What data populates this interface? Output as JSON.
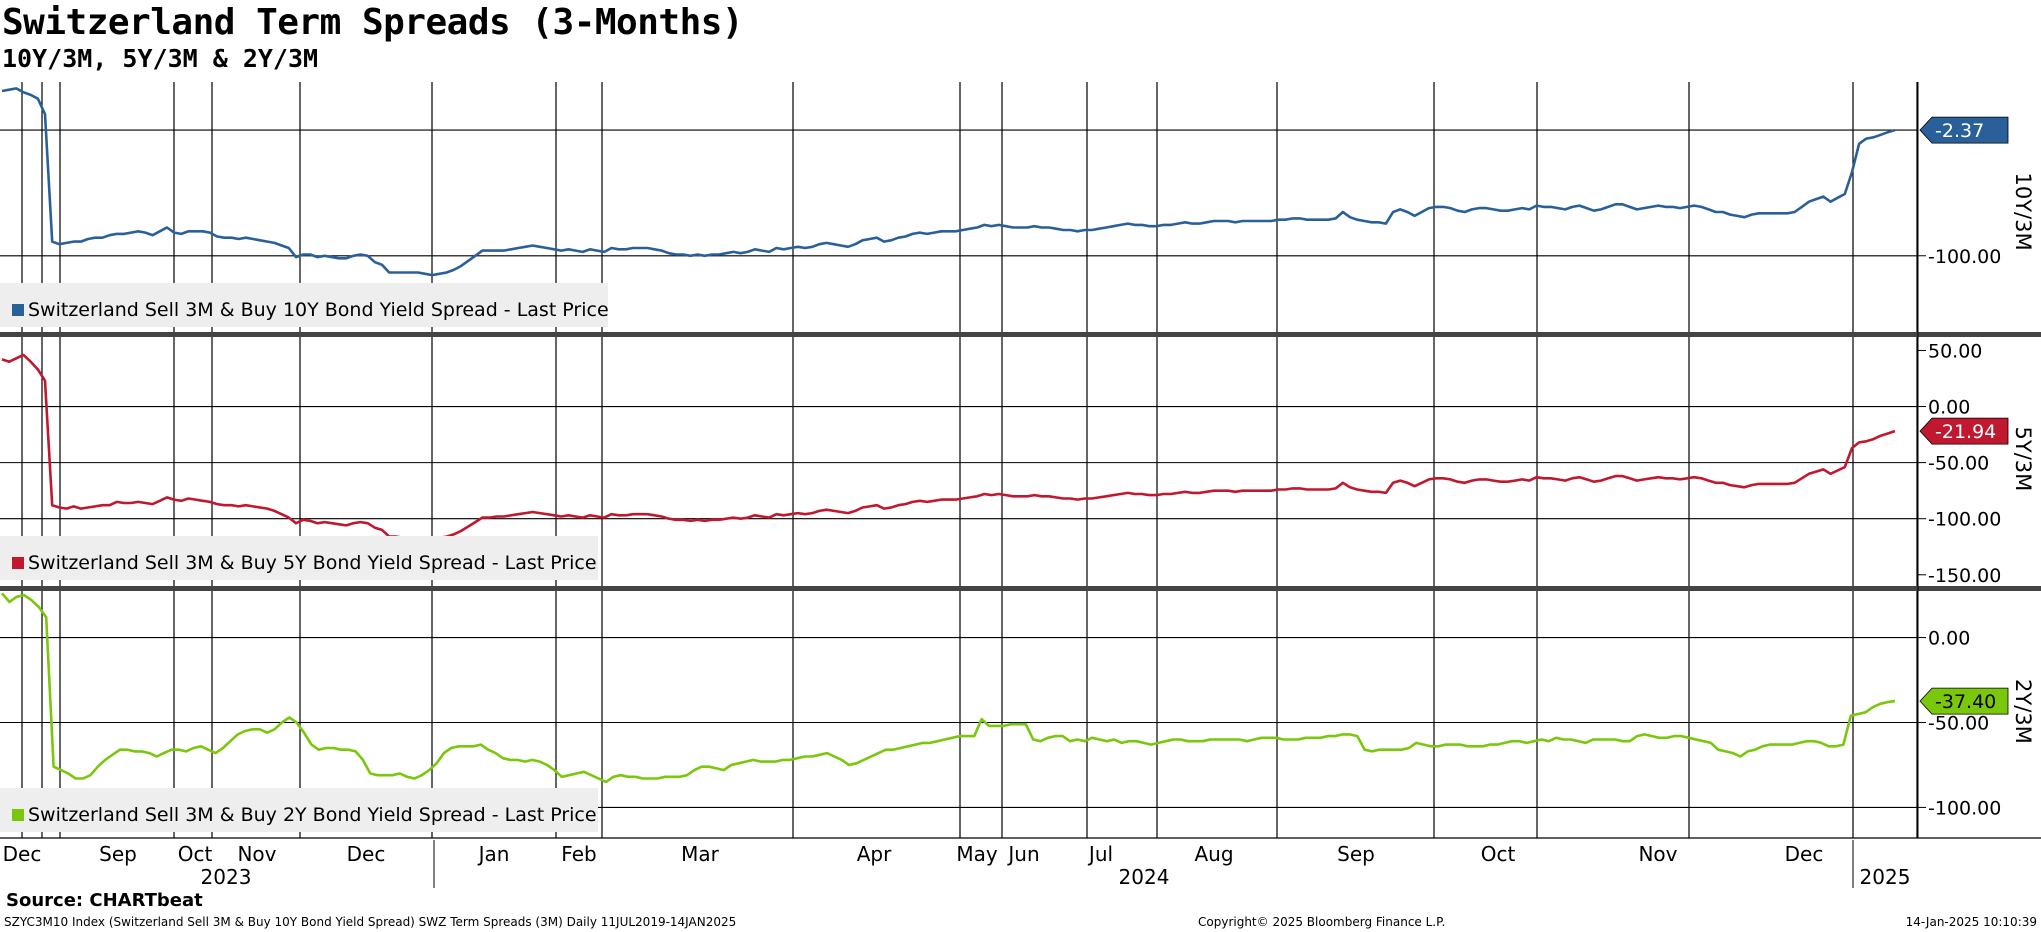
{
  "header": {
    "title": "Switzerland Term Spreads (3-Months)",
    "subtitle": "10Y/3M, 5Y/3M & 2Y/3M"
  },
  "footer": {
    "source": "Source: CHARTbeat",
    "description": "SZYC3M10 Index (Switzerland Sell 3M & Buy 10Y Bond Yield Spread) SWZ Term Spreads (3M)  Daily 11JUL2019-14JAN2025",
    "copyright": "Copyright© 2025 Bloomberg Finance L.P.",
    "timestamp": "14-Jan-2025 10:10:39"
  },
  "colors": {
    "series_10y": "#2a6099",
    "series_5y": "#c0182f",
    "series_2y": "#7ac70c",
    "grid": "#000000"
  },
  "chart_data": {
    "type": "line",
    "x_axis": {
      "start_week": 0,
      "end_week": 60,
      "months": [
        {
          "label": "Dec",
          "week": 0
        },
        {
          "label": "Sep",
          "week": 6.5
        },
        {
          "label": "Oct",
          "week": 11
        },
        {
          "label": "Nov",
          "week": 15
        },
        {
          "label": "Dec",
          "week": 22
        },
        {
          "label": "Jan",
          "week": 29
        },
        {
          "label": "Feb",
          "week": 33
        },
        {
          "label": "Mar",
          "week": 39
        },
        {
          "label": "Apr",
          "week": 46
        },
        {
          "label": "May",
          "week": 51
        },
        {
          "label": "Jun",
          "week": 53
        },
        {
          "label": "Jul",
          "week": 57
        },
        {
          "label": "Aug",
          "week": 62
        },
        {
          "label": "Sep",
          "week": 69
        },
        {
          "label": "Oct",
          "week": 77
        },
        {
          "label": "Nov",
          "week": 86
        },
        {
          "label": "Dec",
          "week": 94
        },
        {
          "label": "2023",
          "week": 13.5,
          "level": "year"
        },
        {
          "label": "2024",
          "week": 61,
          "level": "year"
        },
        {
          "label": "2025",
          "week": 99.5,
          "level": "year"
        }
      ]
    },
    "panels": [
      {
        "name": "10Y/3M",
        "legend": "Switzerland Sell 3M & Buy 10Y Bond Yield Spread - Last Price",
        "last_value": "-2.37",
        "ylim": [
          -160,
          35
        ],
        "ticks": [
          {
            "value": -100,
            "label": "-100.00"
          }
        ],
        "gridlines": [
          -2.37,
          -100
        ],
        "series": [
          28,
          29,
          30,
          27,
          25,
          22,
          10,
          -89,
          -91,
          -90,
          -89,
          -89,
          -87,
          -86,
          -86,
          -84,
          -83,
          -83,
          -82,
          -81,
          -82,
          -84,
          -81,
          -78,
          -82,
          -83,
          -81,
          -81,
          -81,
          -82,
          -85,
          -86,
          -86,
          -87,
          -86,
          -87,
          -88,
          -89,
          -90,
          -92,
          -94,
          -101,
          -99,
          -99,
          -101,
          -100,
          -101,
          -102,
          -102,
          -100,
          -99,
          -100,
          -105,
          -107,
          -113,
          -113,
          -113,
          -113,
          -113,
          -114,
          -115,
          -114,
          -113,
          -111,
          -108,
          -104,
          -100,
          -96,
          -96,
          -96,
          -96,
          -95,
          -94,
          -93,
          -92,
          -93,
          -94,
          -95,
          -96,
          -95,
          -96,
          -97,
          -95,
          -96,
          -97,
          -94,
          -95,
          -95,
          -94,
          -94,
          -94,
          -95,
          -96,
          -98,
          -99,
          -99,
          -100,
          -99,
          -100,
          -99,
          -99,
          -98,
          -97,
          -98,
          -97,
          -95,
          -96,
          -97,
          -94,
          -95,
          -94,
          -93,
          -94,
          -93,
          -91,
          -90,
          -91,
          -92,
          -93,
          -91,
          -88,
          -87,
          -86,
          -89,
          -88,
          -86,
          -85,
          -83,
          -82,
          -83,
          -82,
          -81,
          -81,
          -81,
          -80,
          -79,
          -78,
          -76,
          -77,
          -76,
          -77,
          -78,
          -78,
          -78,
          -77,
          -78,
          -78,
          -79,
          -80,
          -80,
          -81,
          -80,
          -80,
          -79,
          -78,
          -77,
          -76,
          -75,
          -76,
          -76,
          -77,
          -77,
          -76,
          -76,
          -75,
          -74,
          -75,
          -75,
          -74,
          -73,
          -73,
          -73,
          -74,
          -73,
          -73,
          -73,
          -73,
          -73,
          -72,
          -72,
          -71,
          -71,
          -72,
          -72,
          -72,
          -72,
          -71,
          -66,
          -70,
          -72,
          -73,
          -74,
          -74,
          -75,
          -66,
          -64,
          -66,
          -69,
          -66,
          -63,
          -62,
          -62,
          -63,
          -65,
          -66,
          -64,
          -63,
          -63,
          -64,
          -65,
          -65,
          -64,
          -63,
          -64,
          -61,
          -62,
          -62,
          -63,
          -64,
          -62,
          -61,
          -63,
          -65,
          -64,
          -62,
          -60,
          -60,
          -62,
          -64,
          -63,
          -62,
          -61,
          -62,
          -62,
          -63,
          -62,
          -61,
          -62,
          -64,
          -66,
          -66,
          -68,
          -69,
          -70,
          -68,
          -67,
          -67,
          -67,
          -67,
          -67,
          -66,
          -62,
          -58,
          -56,
          -54,
          -58,
          -55,
          -52,
          -35,
          -13,
          -9,
          -8,
          -6,
          -4,
          -2.37
        ]
      },
      {
        "name": "5Y/3M",
        "legend": "Switzerland Sell 3M & Buy 5Y Bond Yield Spread - Last Price",
        "last_value": "-21.94",
        "ylim": [
          -160,
          62
        ],
        "ticks": [
          {
            "value": 50,
            "label": "50.00"
          },
          {
            "value": 0,
            "label": "0.00"
          },
          {
            "value": -50,
            "label": "-50.00"
          },
          {
            "value": -100,
            "label": "-100.00"
          },
          {
            "value": -150,
            "label": "-150.00"
          }
        ],
        "gridlines": [
          0,
          -50,
          -100
        ],
        "series": [
          42,
          40,
          43,
          46,
          40,
          33,
          23,
          -88,
          -90,
          -91,
          -89,
          -91,
          -90,
          -89,
          -88,
          -88,
          -85,
          -86,
          -86,
          -85,
          -86,
          -87,
          -84,
          -81,
          -83,
          -84,
          -82,
          -83,
          -84,
          -85,
          -87,
          -88,
          -88,
          -89,
          -88,
          -89,
          -90,
          -91,
          -93,
          -96,
          -99,
          -104,
          -101,
          -102,
          -104,
          -103,
          -104,
          -105,
          -106,
          -104,
          -103,
          -104,
          -108,
          -110,
          -116,
          -116,
          -117,
          -117,
          -117,
          -117,
          -118,
          -117,
          -116,
          -114,
          -111,
          -107,
          -103,
          -99,
          -99,
          -98,
          -98,
          -97,
          -96,
          -95,
          -94,
          -95,
          -96,
          -97,
          -98,
          -97,
          -98,
          -99,
          -97,
          -98,
          -99,
          -96,
          -97,
          -97,
          -96,
          -96,
          -96,
          -97,
          -98,
          -100,
          -101,
          -101,
          -102,
          -101,
          -102,
          -101,
          -101,
          -100,
          -99,
          -100,
          -99,
          -97,
          -98,
          -99,
          -96,
          -97,
          -96,
          -95,
          -96,
          -95,
          -93,
          -92,
          -93,
          -94,
          -95,
          -93,
          -90,
          -89,
          -88,
          -91,
          -90,
          -88,
          -87,
          -85,
          -84,
          -85,
          -84,
          -83,
          -83,
          -83,
          -82,
          -81,
          -80,
          -78,
          -79,
          -78,
          -79,
          -80,
          -80,
          -80,
          -79,
          -80,
          -80,
          -81,
          -82,
          -82,
          -83,
          -82,
          -82,
          -81,
          -80,
          -79,
          -78,
          -77,
          -78,
          -78,
          -79,
          -79,
          -78,
          -78,
          -77,
          -76,
          -77,
          -77,
          -76,
          -75,
          -75,
          -75,
          -76,
          -75,
          -75,
          -75,
          -75,
          -75,
          -74,
          -74,
          -73,
          -73,
          -74,
          -74,
          -74,
          -74,
          -73,
          -68,
          -72,
          -74,
          -75,
          -76,
          -76,
          -77,
          -68,
          -66,
          -68,
          -71,
          -68,
          -65,
          -64,
          -64,
          -65,
          -67,
          -68,
          -66,
          -65,
          -65,
          -66,
          -67,
          -67,
          -66,
          -65,
          -66,
          -63,
          -64,
          -64,
          -65,
          -66,
          -64,
          -63,
          -65,
          -67,
          -66,
          -64,
          -62,
          -62,
          -64,
          -66,
          -65,
          -64,
          -63,
          -64,
          -64,
          -65,
          -64,
          -63,
          -64,
          -66,
          -68,
          -68,
          -70,
          -71,
          -72,
          -70,
          -69,
          -69,
          -69,
          -69,
          -69,
          -68,
          -64,
          -60,
          -58,
          -56,
          -60,
          -57,
          -54,
          -37,
          -32,
          -31,
          -29,
          -26,
          -24,
          -21.94
        ]
      },
      {
        "name": "2Y/3M",
        "legend": "Switzerland Sell 3M & Buy 2Y Bond Yield Spread - Last Price",
        "last_value": "-37.40",
        "ylim": [
          -118,
          28
        ],
        "ticks": [
          {
            "value": 0,
            "label": "0.00"
          },
          {
            "value": -50,
            "label": "-50.00"
          },
          {
            "value": -100,
            "label": "-100.00"
          }
        ],
        "gridlines": [
          0,
          -50,
          -100
        ],
        "series": [
          26,
          21,
          24,
          25,
          22,
          18,
          12,
          -76,
          -78,
          -80,
          -83,
          -83,
          -81,
          -76,
          -72,
          -69,
          -66,
          -66,
          -67,
          -67,
          -68,
          -70,
          -68,
          -66,
          -66,
          -67,
          -65,
          -64,
          -66,
          -68,
          -65,
          -61,
          -57,
          -55,
          -54,
          -54,
          -56,
          -54,
          -50,
          -47,
          -50,
          -56,
          -63,
          -66,
          -65,
          -65,
          -66,
          -66,
          -67,
          -72,
          -80,
          -81,
          -81,
          -81,
          -80,
          -82,
          -83,
          -81,
          -78,
          -74,
          -68,
          -65,
          -64,
          -64,
          -64,
          -63,
          -66,
          -68,
          -71,
          -72,
          -72,
          -73,
          -72,
          -73,
          -75,
          -78,
          -82,
          -81,
          -80,
          -79,
          -81,
          -83,
          -85,
          -82,
          -81,
          -82,
          -82,
          -83,
          -83,
          -83,
          -82,
          -82,
          -82,
          -81,
          -78,
          -76,
          -76,
          -77,
          -78,
          -75,
          -74,
          -73,
          -72,
          -73,
          -73,
          -73,
          -72,
          -72,
          -71,
          -70,
          -70,
          -69,
          -68,
          -70,
          -72,
          -75,
          -74,
          -72,
          -70,
          -68,
          -66,
          -66,
          -65,
          -64,
          -63,
          -62,
          -62,
          -61,
          -60,
          -59,
          -58,
          -58,
          -58,
          -48,
          -52,
          -52,
          -52,
          -51,
          -51,
          -51,
          -60,
          -61,
          -59,
          -58,
          -58,
          -61,
          -60,
          -61,
          -59,
          -60,
          -61,
          -60,
          -62,
          -61,
          -61,
          -62,
          -63,
          -62,
          -61,
          -60,
          -60,
          -61,
          -61,
          -61,
          -60,
          -60,
          -60,
          -60,
          -60,
          -61,
          -60,
          -59,
          -59,
          -59,
          -60,
          -60,
          -60,
          -59,
          -59,
          -59,
          -58,
          -58,
          -57,
          -57,
          -58,
          -66,
          -67,
          -66,
          -66,
          -66,
          -66,
          -65,
          -62,
          -63,
          -64,
          -64,
          -63,
          -63,
          -63,
          -64,
          -64,
          -64,
          -63,
          -63,
          -62,
          -61,
          -61,
          -62,
          -61,
          -60,
          -61,
          -59,
          -60,
          -60,
          -61,
          -62,
          -60,
          -60,
          -60,
          -60,
          -61,
          -61,
          -58,
          -57,
          -58,
          -59,
          -59,
          -58,
          -58,
          -59,
          -60,
          -61,
          -62,
          -66,
          -67,
          -68,
          -70,
          -67,
          -66,
          -64,
          -63,
          -63,
          -63,
          -63,
          -62,
          -61,
          -61,
          -62,
          -64,
          -64,
          -63,
          -46,
          -45,
          -44,
          -41,
          -39,
          -38,
          -37.4
        ]
      }
    ]
  }
}
